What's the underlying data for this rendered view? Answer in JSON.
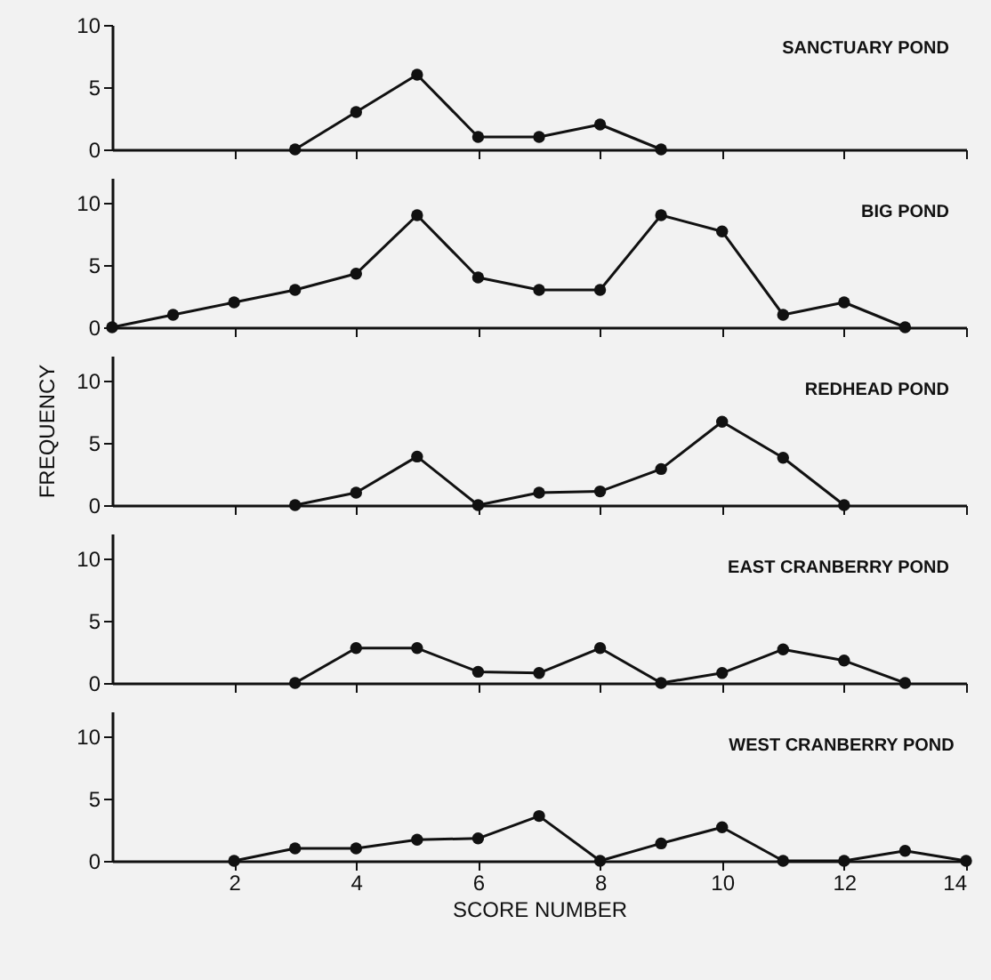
{
  "chart_data": [
    {
      "type": "line",
      "title": "SANCTUARY POND",
      "x": [
        3,
        4,
        5,
        6,
        7,
        8,
        9
      ],
      "values": [
        0,
        3,
        6,
        1,
        1,
        2,
        0
      ],
      "color": "#111111",
      "marker": "circle",
      "xlim": [
        0,
        14
      ],
      "xticks": [
        2,
        4,
        6,
        8,
        10,
        12,
        14
      ],
      "ylim": [
        0,
        10
      ],
      "yticks": [
        0,
        5,
        10
      ],
      "tick_labels": "y",
      "grid": false
    },
    {
      "type": "line",
      "title": "BIG POND",
      "x": [
        0,
        1,
        2,
        3,
        4,
        5,
        6,
        7,
        8,
        9,
        10,
        11,
        12,
        13
      ],
      "values": [
        0,
        1,
        2,
        3,
        4.3,
        9,
        4,
        3,
        3,
        9,
        7.7,
        1,
        2,
        0
      ],
      "color": "#111111",
      "marker": "circle",
      "xlim": [
        0,
        14
      ],
      "xticks": [
        2,
        4,
        6,
        8,
        10,
        12,
        14
      ],
      "ylim": [
        0,
        12
      ],
      "yticks": [
        0,
        5,
        10
      ],
      "tick_labels": "y",
      "grid": false
    },
    {
      "type": "line",
      "title": "REDHEAD POND",
      "ylabel": "FREQUENCY",
      "x": [
        3,
        4,
        5,
        6,
        7,
        8,
        9,
        10,
        11,
        12
      ],
      "values": [
        0,
        1,
        3.9,
        0,
        1,
        1.1,
        2.9,
        6.7,
        3.8,
        0
      ],
      "color": "#111111",
      "marker": "circle",
      "xlim": [
        0,
        14
      ],
      "xticks": [
        2,
        4,
        6,
        8,
        10,
        12,
        14
      ],
      "ylim": [
        0,
        12
      ],
      "yticks": [
        0,
        5,
        10
      ],
      "tick_labels": "y",
      "grid": false
    },
    {
      "type": "line",
      "title": "EAST CRANBERRY POND",
      "x": [
        3,
        4,
        5,
        6,
        7,
        8,
        9,
        10,
        11,
        12,
        13
      ],
      "values": [
        0,
        2.8,
        2.8,
        0.9,
        0.8,
        2.8,
        0,
        0.8,
        2.7,
        1.8,
        0
      ],
      "color": "#111111",
      "marker": "circle",
      "xlim": [
        0,
        14
      ],
      "xticks": [
        2,
        4,
        6,
        8,
        10,
        12,
        14
      ],
      "ylim": [
        0,
        12
      ],
      "yticks": [
        0,
        5,
        10
      ],
      "tick_labels": "y",
      "grid": false
    },
    {
      "type": "line",
      "title": "WEST CRANBERRY POND",
      "xlabel": "SCORE NUMBER",
      "x": [
        2,
        3,
        4,
        5,
        6,
        7,
        8,
        9,
        10,
        11,
        12,
        13,
        14
      ],
      "values": [
        0,
        1,
        1,
        1.7,
        1.8,
        3.6,
        0,
        1.4,
        2.7,
        0,
        0,
        0.8,
        0
      ],
      "color": "#111111",
      "marker": "circle",
      "xlim": [
        0,
        14
      ],
      "xticks": [
        2,
        4,
        6,
        8,
        10,
        12,
        14
      ],
      "ylim": [
        0,
        12
      ],
      "yticks": [
        0,
        5,
        10
      ],
      "grid": false
    }
  ]
}
